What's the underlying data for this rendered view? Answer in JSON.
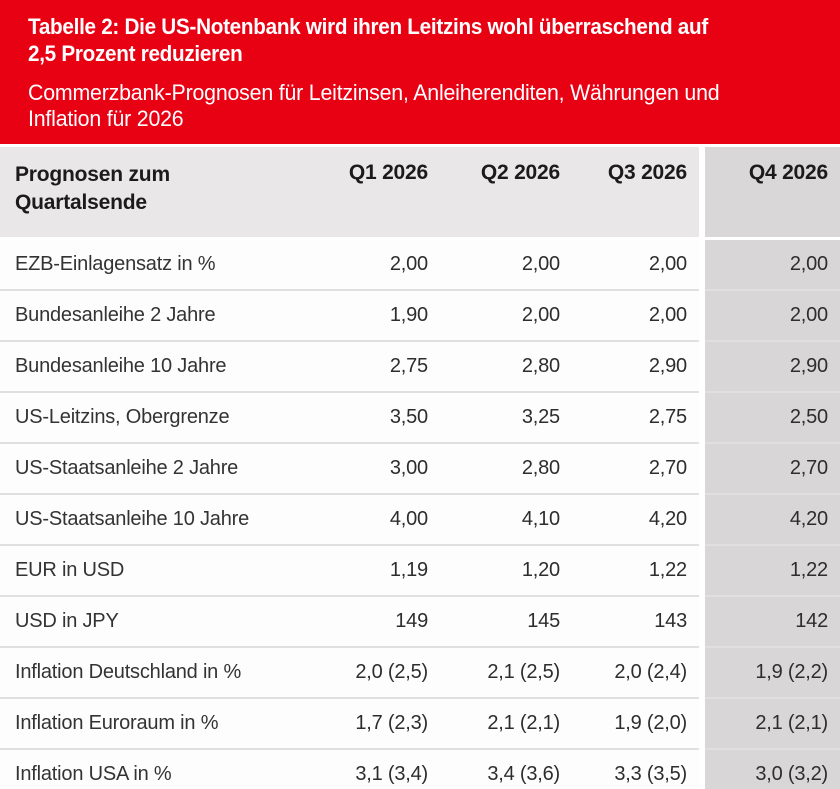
{
  "colors": {
    "banner_red": "#e80013",
    "header_row_gray": "#e9e7e8",
    "highlight_column_gray": "#d8d6d6",
    "text_dark": "#2e2d2d"
  },
  "header": {
    "title_lines": [
      "Tabelle 2: Die US-Notenbank wird ihren Leitzins wohl überraschend auf",
      "2,5 Prozent reduzieren"
    ],
    "subtitle_lines": [
      "Commerzbank-Prognosen für Leitzinsen, Anleiherenditen, Währungen und",
      "Inflation für 2026"
    ]
  },
  "chart_data": {
    "type": "table",
    "title": "Tabelle 2: Die US-Notenbank wird ihren Leitzins wohl überraschend auf 2,5 Prozent reduzieren",
    "subtitle": "Commerzbank-Prognosen für Leitzinsen, Anleiherenditen, Währungen und Inflation für 2026",
    "highlighted_column": "Q4 2026",
    "columns": [
      "Prognosen zum Quartalsende",
      "Q1 2026",
      "Q2 2026",
      "Q3 2026",
      "Q4 2026"
    ],
    "rows": [
      {
        "label": "EZB-Einlagensatz in %",
        "q1": "2,00",
        "q2": "2,00",
        "q3": "2,00",
        "q4": "2,00"
      },
      {
        "label": "Bundesanleihe 2 Jahre",
        "q1": "1,90",
        "q2": "2,00",
        "q3": "2,00",
        "q4": "2,00"
      },
      {
        "label": "Bundesanleihe 10 Jahre",
        "q1": "2,75",
        "q2": "2,80",
        "q3": "2,90",
        "q4": "2,90"
      },
      {
        "label": "US-Leitzins, Obergrenze",
        "q1": "3,50",
        "q2": "3,25",
        "q3": "2,75",
        "q4": "2,50"
      },
      {
        "label": "US-Staatsanleihe 2 Jahre",
        "q1": "3,00",
        "q2": "2,80",
        "q3": "2,70",
        "q4": "2,70"
      },
      {
        "label": "US-Staatsanleihe 10 Jahre",
        "q1": "4,00",
        "q2": "4,10",
        "q3": "4,20",
        "q4": "4,20"
      },
      {
        "label": "EUR in USD",
        "q1": "1,19",
        "q2": "1,20",
        "q3": "1,22",
        "q4": "1,22"
      },
      {
        "label": "USD in JPY",
        "q1": "149",
        "q2": "145",
        "q3": "143",
        "q4": "142"
      },
      {
        "label": "Inflation Deutschland in %",
        "q1": "2,0 (2,5)",
        "q2": "2,1 (2,5)",
        "q3": "2,0 (2,4)",
        "q4": "1,9 (2,2)"
      },
      {
        "label": "Inflation Euroraum in %",
        "q1": "1,7 (2,3)",
        "q2": "2,1 (2,1)",
        "q3": "1,9 (2,0)",
        "q4": "2,1 (2,1)"
      },
      {
        "label": "Inflation USA in %",
        "q1": "3,1 (3,4)",
        "q2": "3,4 (3,6)",
        "q3": "3,3 (3,5)",
        "q4": "3,0 (3,2)"
      }
    ]
  }
}
